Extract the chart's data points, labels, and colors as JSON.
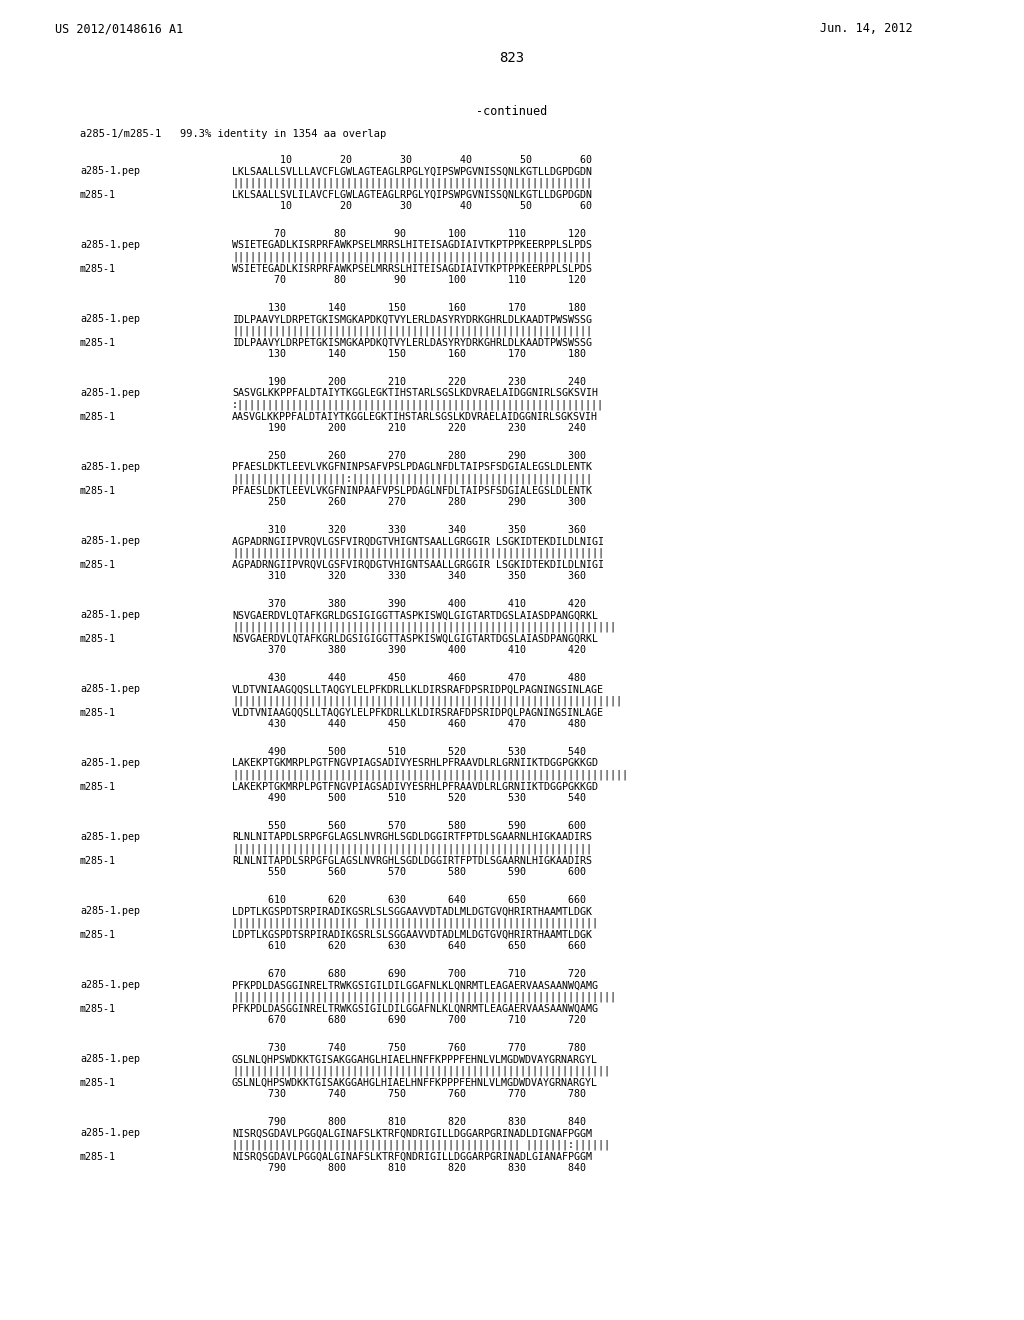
{
  "header_left": "US 2012/0148616 A1",
  "header_right": "Jun. 14, 2012",
  "page_number": "823",
  "continued_label": "-continued",
  "identity_line": "a285-1/m285-1   99.3% identity in 1354 aa overlap",
  "background_color": "#ffffff",
  "text_color": "#000000",
  "blocks": [
    {
      "nums_top": "        10        20        30        40        50        60",
      "seq1_label": "a285-1.pep",
      "seq1": "LKLSAALLSVLLLAVCFLGWLAGTEAGLRPGLYQIPSWPGVNISSQNLKGTLLDGPDGDN",
      "match": "||||||||||||||||||||||||||||||||||||||||||||||||||||||||||||",
      "seq2_label": "m285-1",
      "seq2": "LKLSAALLSVLILAVCFLGWLAGTEAGLRPGLYQIPSWPGVNISSQNLKGTLLDGPDGDN",
      "nums_bot": "        10        20        30        40        50        60"
    },
    {
      "nums_top": "       70        80        90       100       110       120",
      "seq1_label": "a285-1.pep",
      "seq1": "WSIETEGADLKISRPRFAWKPSELMRRSLHITEISAGDIAIVTKPTPPKEERPPLSLPDS",
      "match": "||||||||||||||||||||||||||||||||||||||||||||||||||||||||||||",
      "seq2_label": "m285-1",
      "seq2": "WSIETEGADLKISRPRFAWKPSELMRRSLHITEISAGDIAIVTKPTPPKEERPPLSLPDS",
      "nums_bot": "       70        80        90       100       110       120"
    },
    {
      "nums_top": "      130       140       150       160       170       180",
      "seq1_label": "a285-1.pep",
      "seq1": "IDLPAAVYLDRPETGKISMGKAPDKQTVYLERLDASYRYDRKGHRLDLKAADTPWSWSSG",
      "match": "||||||||||||||||||||||||||||||||||||||||||||||||||||||||||||",
      "seq2_label": "m285-1",
      "seq2": "IDLPAAVYLDRPETGKISMGKAPDKQTVYLERLDASYRYDRKGHRLDLKAADTPWSWSSG",
      "nums_bot": "      130       140       150       160       170       180"
    },
    {
      "nums_top": "      190       200       210       220       230       240",
      "seq1_label": "a285-1.pep",
      "seq1": "SASVGLKKPPFALDTAIYTKGGLEGKTIHSTARLSGSLKDVRAELAIDGGNIRLSGKSVIH",
      "match": ":|||||||||||||||||||||||||||||||||||||||||||||||||||||||||||||",
      "seq2_label": "m285-1",
      "seq2": "AASVGLKKPPFALDTAIYTKGGLEGKTIHSTARLSGSLKDVRAELAIDGGNIRLSGKSVIH",
      "nums_bot": "      190       200       210       220       230       240"
    },
    {
      "nums_top": "      250       260       270       280       290       300",
      "seq1_label": "a285-1.pep",
      "seq1": "PFAESLDKTLEEVLVKGFNINPSAFVPSLPDAGLNFDLTAIPSFSDGIALEGSLDLENTK",
      "match": "|||||||||||||||||||:||||||||||||||||||||||||||||||||||||||||",
      "seq2_label": "m285-1",
      "seq2": "PFAESLDKTLEEVLVKGFNINPAAFVPSLPDAGLNFDLTAIPSFSDGIALEGSLDLENTK",
      "nums_bot": "      250       260       270       280       290       300"
    },
    {
      "nums_top": "      310       320       330       340       350       360",
      "seq1_label": "a285-1.pep",
      "seq1": "AGPADRNGIIPVRQVLGSFVIRQDGTVHIGNTSAALLGRGGIR LSGKIDTEKDILDLNIGI",
      "match": "||||||||||||||||||||||||||||||||||||||||||||||||||||||||||||||",
      "seq2_label": "m285-1",
      "seq2": "AGPADRNGIIPVRQVLGSFVIRQDGTVHIGNTSAALLGRGGIR LSGKIDTEKDILDLNIGI",
      "nums_bot": "      310       320       330       340       350       360"
    },
    {
      "nums_top": "      370       380       390       400       410       420",
      "seq1_label": "a285-1.pep",
      "seq1": "NSVGAERDVLQTAFKGRLDGSIGIGGTTASPKISWQLGIGTARTDGSLAIASDPANGQRKL",
      "match": "||||||||||||||||||||||||||||||||||||||||||||||||||||||||||||||||",
      "seq2_label": "m285-1",
      "seq2": "NSVGAERDVLQTAFKGRLDGSIGIGGTTASPKISWQLGIGTARTDGSLAIASDPANGQRKL",
      "nums_bot": "      370       380       390       400       410       420"
    },
    {
      "nums_top": "      430       440       450       460       470       480",
      "seq1_label": "a285-1.pep",
      "seq1": "VLDTVNIAAGQQSLLTAQGYLELPFKDRLLKLDIRSRAFDPSRIDPQLPAGNINGSINLAGE",
      "match": "|||||||||||||||||||||||||||||||||||||||||||||||||||||||||||||||||",
      "seq2_label": "m285-1",
      "seq2": "VLDTVNIAAGQQSLLTAQGYLELPFKDRLLKLDIRSRAFDPSRIDPQLPAGNINGSINLAGE",
      "nums_bot": "      430       440       450       460       470       480"
    },
    {
      "nums_top": "      490       500       510       520       530       540",
      "seq1_label": "a285-1.pep",
      "seq1": "LAKEKPTGKMRPLPGTFNGVPIAGSADIVYESRHLPFRAAVDLRLGRNIIKTDGGPGKKGD",
      "match": "||||||||||||||||||||||||||||||||||||||||||||||||||||||||||||||||||",
      "seq2_label": "m285-1",
      "seq2": "LAKEKPTGKMRPLPGTFNGVPIAGSADIVYESRHLPFRAAVDLRLGRNIIKTDGGPGKKGD",
      "nums_bot": "      490       500       510       520       530       540"
    },
    {
      "nums_top": "      550       560       570       580       590       600",
      "seq1_label": "a285-1.pep",
      "seq1": "RLNLNITAPDLSRPGFGLAGSLNVRGHLSGDLDGGIRTFPTDLSGAARNLHIGKAADIRS",
      "match": "||||||||||||||||||||||||||||||||||||||||||||||||||||||||||||",
      "seq2_label": "m285-1",
      "seq2": "RLNLNITAPDLSRPGFGLAGSLNVRGHLSGDLDGGIRTFPTDLSGAARNLHIGKAADIRS",
      "nums_bot": "      550       560       570       580       590       600"
    },
    {
      "nums_top": "      610       620       630       640       650       660",
      "seq1_label": "a285-1.pep",
      "seq1": "LDPTLKGSPDTSRPIRADIKGSRLSLSGGAAVVDTADLMLDGTGVQHRIRTHAAMTLDGK",
      "match": "||||||||||||||||||||| |||||||||||||||||||||||||||||||||||||||",
      "seq2_label": "m285-1",
      "seq2": "LDPTLKGSPDTSRPIRADIKGSRLSLSGGAAVVDTADLMLDGTGVQHRIRTHAAMTLDGK",
      "nums_bot": "      610       620       630       640       650       660"
    },
    {
      "nums_top": "      670       680       690       700       710       720",
      "seq1_label": "a285-1.pep",
      "seq1": "PFKPDLDASGGINRELTRWKGSIGILDILGGAFNLKLQNRMTLEAGAERVAASAANWQAMG",
      "match": "||||||||||||||||||||||||||||||||||||||||||||||||||||||||||||||||",
      "seq2_label": "m285-1",
      "seq2": "PFKPDLDASGGINRELTRWKGSIGILDILGGAFNLKLQNRMTLEAGAERVAASAANWQAMG",
      "nums_bot": "      670       680       690       700       710       720"
    },
    {
      "nums_top": "      730       740       750       760       770       780",
      "seq1_label": "a285-1.pep",
      "seq1": "GSLNLQHPSWDKKTGISAKGGAHGLHIAELHNFFKPPPFEHNLVLMGDWDVAYGRNARGYL",
      "match": "|||||||||||||||||||||||||||||||||||||||||||||||||||||||||||||||",
      "seq2_label": "m285-1",
      "seq2": "GSLNLQHPSWDKKTGISAKGGAHGLHIAELHNFFKPPPFEHNLVLMGDWDVAYGRNARGYL",
      "nums_bot": "      730       740       750       760       770       780"
    },
    {
      "nums_top": "      790       800       810       820       830       840",
      "seq1_label": "a285-1.pep",
      "seq1": "NISRQSGDAVLPGGQALGINAFSLKTRFQNDRIGILLDGGARPGRINADLDIGNAFPGGM",
      "match": "|||||||||||||||||||||||||||||||||||||||||||||||| |||||||:||||||",
      "seq2_label": "m285-1",
      "seq2": "NISRQSGDAVLPGGQALGINAFSLKTRFQNDRIGILLDGGARPGRINADLGIANAFPGGM",
      "nums_bot": "      790       800       810       820       830       840"
    }
  ]
}
